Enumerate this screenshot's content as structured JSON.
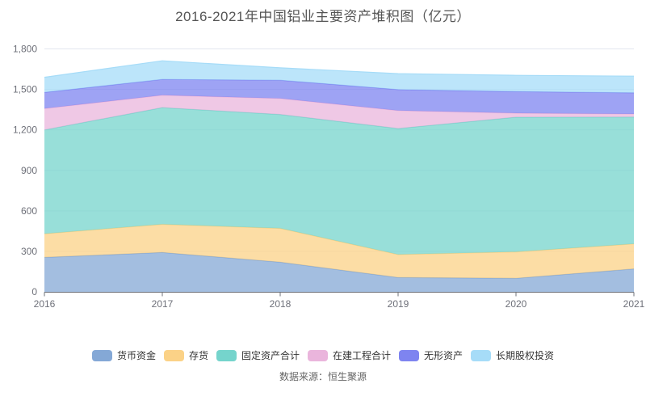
{
  "title": "2016-2021年中国铝业主要资产堆积图（亿元）",
  "source_note": "数据来源：恒生聚源",
  "axis": {
    "ytick_labels": [
      "0",
      "300",
      "600",
      "900",
      "1,200",
      "1,500",
      "1,800"
    ],
    "xtick_labels": [
      "2016",
      "2017",
      "2018",
      "2019",
      "2020",
      "2021"
    ]
  },
  "colors": {
    "grid_line": "#e3e6ef",
    "axis_line": "#6E7079",
    "axis_label": "#6E7079",
    "area_opacity": 0.75
  },
  "chart_data": {
    "type": "area",
    "stacked": true,
    "title": "2016-2021年中国铝业主要资产堆积图（亿元）",
    "x": [
      "2016",
      "2017",
      "2018",
      "2019",
      "2020",
      "2021"
    ],
    "xlabel": "",
    "ylabel": "亿元",
    "ylim": [
      0,
      1800
    ],
    "ytick_step": 300,
    "grid": true,
    "legend_position": "bottom",
    "series": [
      {
        "key": "monetary-funds",
        "name": "货币资金",
        "color": "#84a8d6",
        "values": [
          255,
          292,
          220,
          106,
          100,
          170
        ]
      },
      {
        "key": "inventory",
        "name": "存货",
        "color": "#fbd287",
        "values": [
          175,
          208,
          250,
          170,
          196,
          185
        ]
      },
      {
        "key": "fixed-assets-total",
        "name": "固定资产合计",
        "color": "#75d4cc",
        "values": [
          770,
          865,
          844,
          934,
          998,
          940
        ]
      },
      {
        "key": "construction-in-progress",
        "name": "在建工程合计",
        "color": "#eab5dc",
        "values": [
          158,
          92,
          119,
          133,
          30,
          23
        ]
      },
      {
        "key": "intangible-assets",
        "name": "无形资产",
        "color": "#7e84f0",
        "values": [
          120,
          117,
          135,
          156,
          160,
          157
        ]
      },
      {
        "key": "long-term-equity",
        "name": "长期股权投资",
        "color": "#a6dcf8",
        "values": [
          112,
          138,
          92,
          118,
          120,
          123
        ]
      }
    ]
  }
}
